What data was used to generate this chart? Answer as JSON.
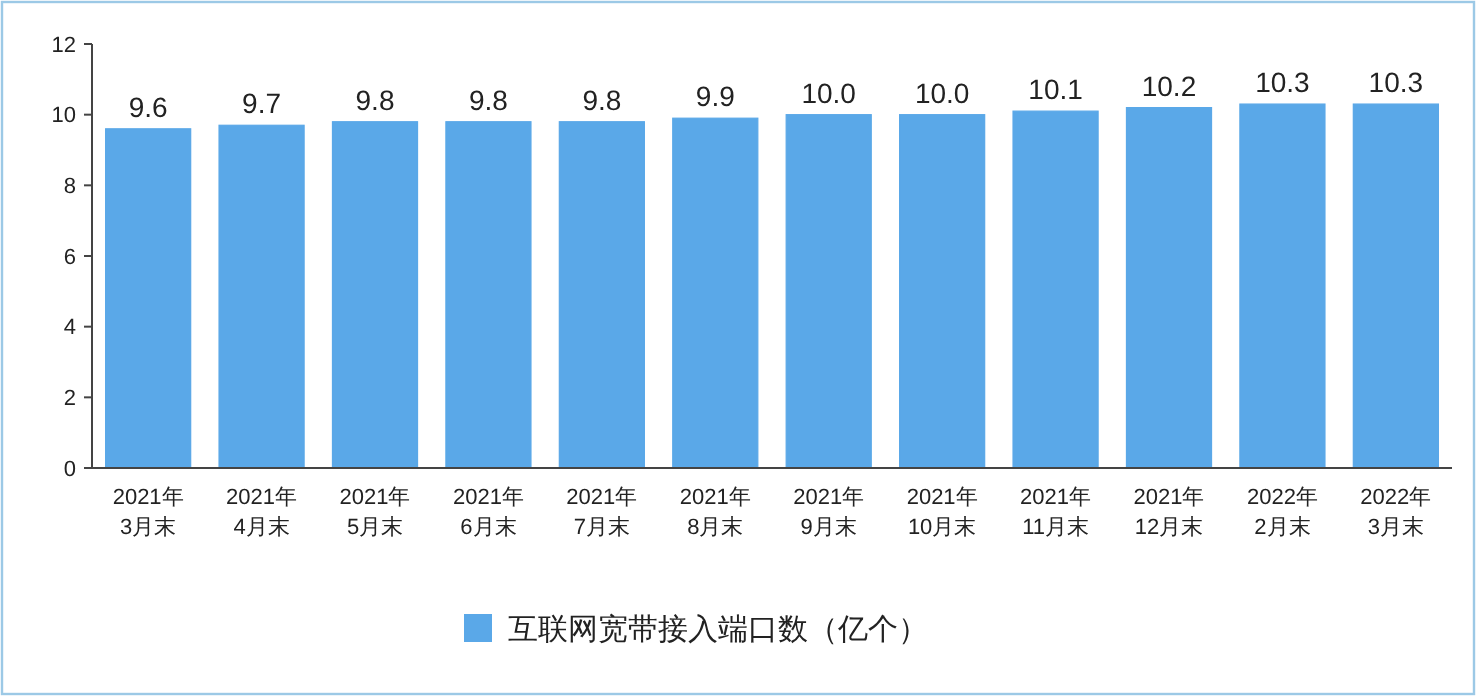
{
  "chart_data": {
    "type": "bar",
    "categories": [
      "2021年\n3月末",
      "2021年\n4月末",
      "2021年\n5月末",
      "2021年\n6月末",
      "2021年\n7月末",
      "2021年\n8月末",
      "2021年\n9月末",
      "2021年\n10月末",
      "2021年\n11月末",
      "2021年\n12月末",
      "2022年\n2月末",
      "2022年\n3月末"
    ],
    "series": [
      {
        "name": "互联网宽带接入端口数（亿个）",
        "color": "#5aa8e8",
        "values": [
          9.6,
          9.7,
          9.8,
          9.8,
          9.8,
          9.9,
          10.0,
          10.0,
          10.1,
          10.2,
          10.3,
          10.3
        ]
      }
    ],
    "value_labels": [
      "9.6",
      "9.7",
      "9.8",
      "9.8",
      "9.8",
      "9.9",
      "10.0",
      "10.0",
      "10.1",
      "10.2",
      "10.3",
      "10.3"
    ],
    "ylim": [
      0,
      12
    ],
    "yticks": [
      0,
      2,
      4,
      6,
      8,
      10,
      12
    ],
    "grid": false,
    "legend": "bottom"
  }
}
